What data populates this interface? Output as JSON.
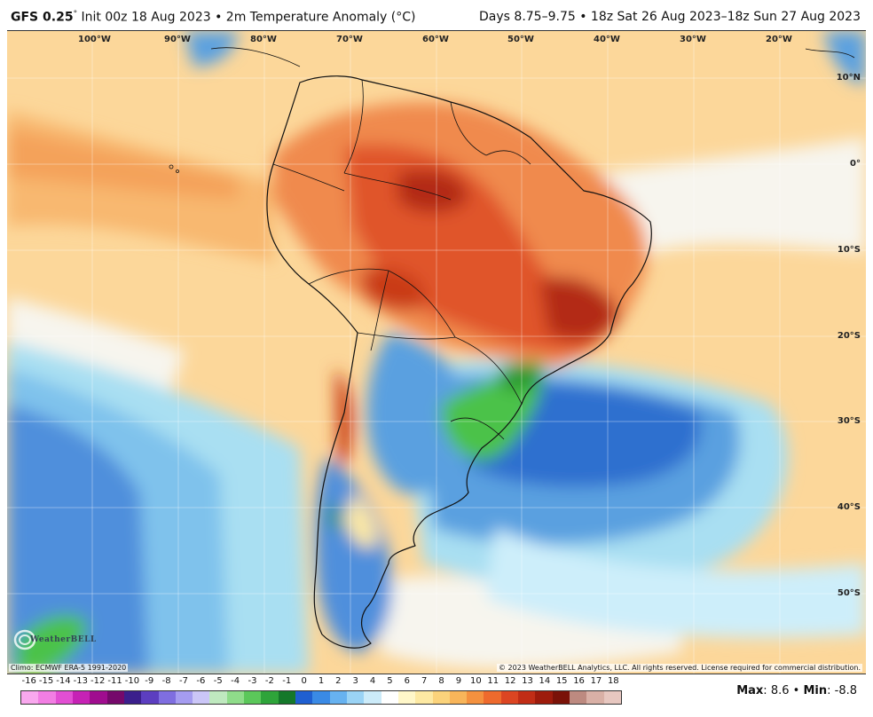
{
  "header": {
    "model": "GFS 0.25",
    "degree_mark": "°",
    "init_text": "Init 00z 18 Aug 2023 • 2m Temperature Anomaly (°C)",
    "period_text": "Days 8.75–9.75 • 18z Sat 26 Aug 2023–18z Sun 27 Aug 2023"
  },
  "map": {
    "lon_labels": [
      "100°W",
      "90°W",
      "80°W",
      "70°W",
      "60°W",
      "50°W",
      "40°W",
      "30°W",
      "20°W"
    ],
    "lat_labels": [
      "10°N",
      "0°",
      "10°S",
      "20°S",
      "30°S",
      "40°S",
      "50°S"
    ],
    "climo_text": "Climo: ECMWF ERA-5 1991-2020",
    "copyright": "© 2023 WeatherBELL Analytics, LLC. All rights reserved. License required for commercial distribution.",
    "logo_text": "WeatherBELL",
    "colors": {
      "ocean_warm": "#fcd79a",
      "strong_warm": "#f08a4e",
      "hot": "#d8401e",
      "very_hot": "#b32b12",
      "neutral": "#f7f5ee",
      "cold_light": "#a9dff2",
      "cold": "#5aa0e0",
      "cold_strong": "#2f6fcf",
      "green": "#4cc24a",
      "green_dark": "#2a9a2e",
      "coast": "#111111"
    }
  },
  "scale": {
    "labels": [
      "-16",
      "-15",
      "-14",
      "-13",
      "-12",
      "-11",
      "-10",
      "-9",
      "-8",
      "-7",
      "-6",
      "-5",
      "-4",
      "-3",
      "-2",
      "-1",
      "0",
      "1",
      "2",
      "3",
      "4",
      "5",
      "6",
      "7",
      "8",
      "9",
      "10",
      "11",
      "12",
      "13",
      "14",
      "15",
      "16",
      "17",
      "18"
    ],
    "colors": [
      "#f9a8ee",
      "#f27ee3",
      "#e24fd3",
      "#c622b5",
      "#a00d8f",
      "#75096b",
      "#3b1f8c",
      "#5c3ec0",
      "#7f6ee0",
      "#a59cf0",
      "#cbc6f7",
      "#bfe9bf",
      "#8fdc8a",
      "#5bc75a",
      "#2ea43a",
      "#15782a",
      "#1f5fd1",
      "#3a8ae5",
      "#67b2f0",
      "#9ad3f5",
      "#ccebf9",
      "#ffffff",
      "#fff7c9",
      "#fde9a3",
      "#fbd37b",
      "#f8b55a",
      "#f4913f",
      "#ee6a2d",
      "#dc4522",
      "#c12d16",
      "#9d1b0c",
      "#7a1208",
      "#bd8a80",
      "#d9b0a6",
      "#e7c7c0"
    ],
    "max_label": "Max",
    "max_value": "8.6",
    "min_label": "Min",
    "min_value": "-8.8",
    "separator": "•"
  }
}
